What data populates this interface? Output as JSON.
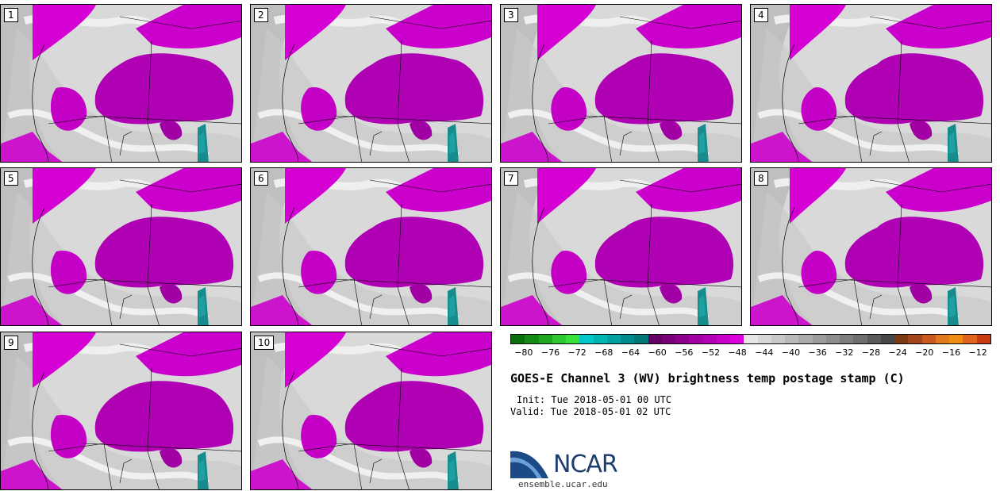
{
  "panels": [
    {
      "label": "1"
    },
    {
      "label": "2"
    },
    {
      "label": "3"
    },
    {
      "label": "4"
    },
    {
      "label": "5"
    },
    {
      "label": "6"
    },
    {
      "label": "7"
    },
    {
      "label": "8"
    },
    {
      "label": "9"
    },
    {
      "label": "10"
    }
  ],
  "colorbar": {
    "colors": [
      "#0a6e0a",
      "#138a13",
      "#1fa61f",
      "#2ec72e",
      "#39e039",
      "#00c8c8",
      "#00b4b4",
      "#00a0a0",
      "#008c8c",
      "#007878",
      "#640064",
      "#780078",
      "#8c008c",
      "#a000a0",
      "#b400b4",
      "#c800c8",
      "#dc00dc",
      "#e6e6e6",
      "#d7d7d7",
      "#c8c8c8",
      "#b9b9b9",
      "#aaaaaa",
      "#9b9b9b",
      "#8c8c8c",
      "#7d7d7d",
      "#6e6e6e",
      "#5a5a5a",
      "#464646",
      "#7a3a14",
      "#a0461a",
      "#c85a1e",
      "#e0781e",
      "#f08c14",
      "#e0641e",
      "#c83c14"
    ],
    "tick_labels": [
      "−80",
      "−76",
      "−72",
      "−68",
      "−64",
      "−60",
      "−56",
      "−52",
      "−48",
      "−44",
      "−40",
      "−36",
      "−32",
      "−28",
      "−24",
      "−20",
      "−16",
      "−12"
    ],
    "tick_values": [
      -80,
      -76,
      -72,
      -68,
      -64,
      -60,
      -56,
      -52,
      -48,
      -44,
      -40,
      -36,
      -32,
      -28,
      -24,
      -20,
      -16,
      -12
    ],
    "range": [
      -82,
      -10
    ]
  },
  "title": "GOES-E Channel 3 (WV) brightness temp postage stamp (C)",
  "init": "Init: Tue 2018-05-01 00 UTC",
  "valid": "Valid: Tue 2018-05-01 02 UTC",
  "logo": {
    "name": "NCAR",
    "url": "ensemble.ucar.edu"
  }
}
